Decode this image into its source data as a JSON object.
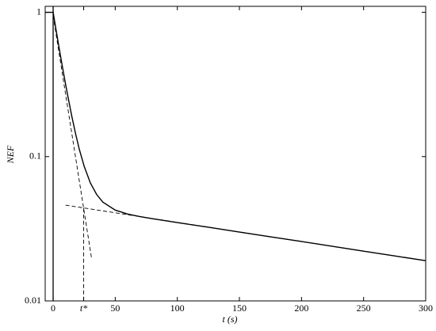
{
  "chart_data": {
    "type": "line",
    "x_label": "t (s)",
    "y_label": "NEF",
    "xlim": [
      -6.4,
      300
    ],
    "ylim": [
      0.01,
      1.1
    ],
    "log_y": true,
    "grid": false,
    "xticks": [
      0,
      {
        "value": 24.6,
        "label": "t*"
      },
      50,
      100,
      150,
      200,
      250,
      300
    ],
    "yticks": [
      0.01,
      0.1,
      1
    ],
    "series": [
      {
        "color": "#000000",
        "dash": false,
        "x": [
          -6.4,
          0,
          2,
          4,
          6,
          8,
          10,
          12,
          15,
          18,
          21,
          25,
          30,
          35,
          40,
          50,
          60,
          70,
          80,
          100,
          125,
          150,
          175,
          200,
          225,
          250,
          275,
          300
        ],
        "values": [
          1,
          1,
          0.787,
          0.623,
          0.495,
          0.396,
          0.318,
          0.258,
          0.191,
          0.145,
          0.113,
          0.0857,
          0.0656,
          0.0547,
          0.0484,
          0.0426,
          0.04,
          0.0384,
          0.0371,
          0.0349,
          0.0324,
          0.03,
          0.0278,
          0.0258,
          0.0239,
          0.0221,
          0.0205,
          0.019
        ]
      },
      {
        "color": "#000000",
        "dash": true,
        "x": [
          0,
          31
        ],
        "values": [
          0.95,
          0.0196
        ]
      },
      {
        "color": "#000000",
        "dash": true,
        "x": [
          10,
          300
        ],
        "values": [
          0.0461,
          0.019
        ]
      },
      {
        "color": "#000000",
        "dash": true,
        "x": [
          24.6,
          24.6
        ],
        "values": [
          0.044,
          0.01
        ]
      }
    ]
  }
}
